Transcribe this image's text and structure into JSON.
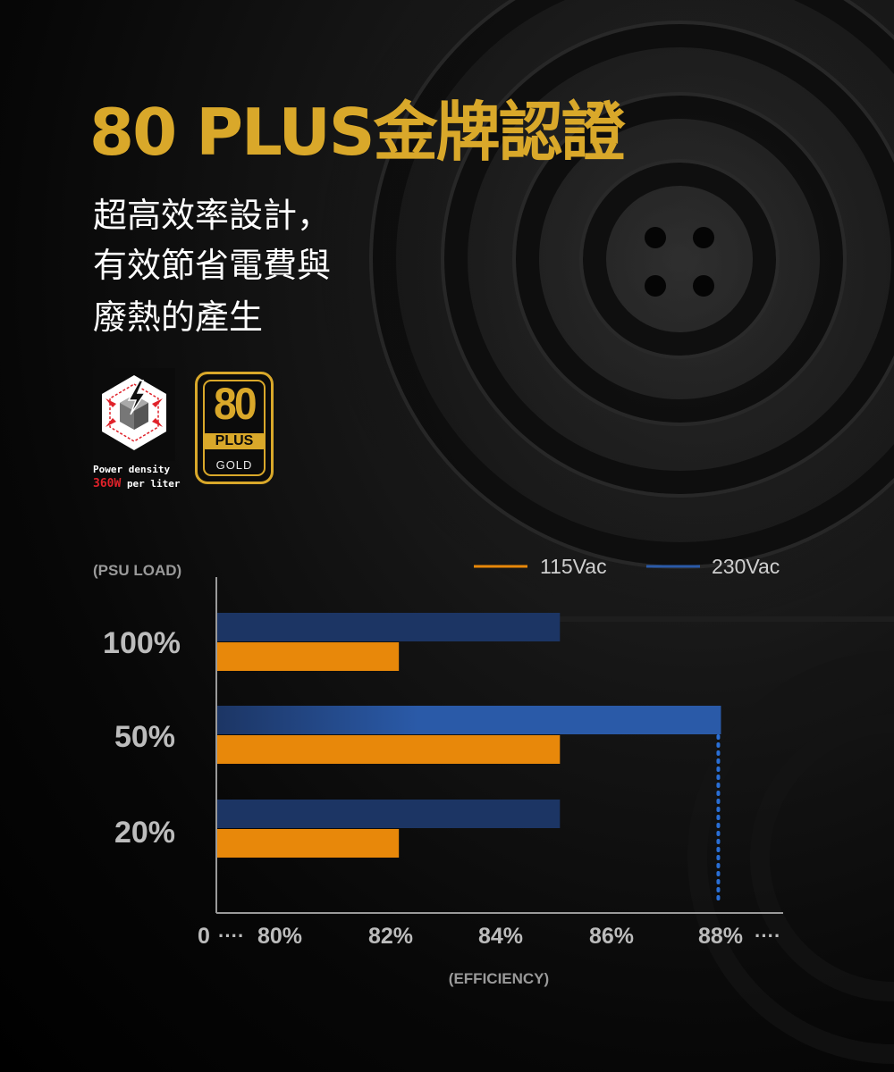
{
  "headline": {
    "title": "80 PLUS金牌認證",
    "lines": [
      "超高效率設計，",
      "有效節省電費與",
      "廢熱的產生"
    ]
  },
  "badges": {
    "power_density": {
      "line1": "Power density",
      "value": "360W",
      "unit": "per liter"
    },
    "eighty_plus": {
      "number": "80",
      "plus": "PLUS",
      "tier": "GOLD"
    }
  },
  "colors": {
    "accent_gold": "#d9a82a",
    "series_115": "#e8880a",
    "series_230": "#1c3564",
    "highlight_230": "#2a5aa8"
  },
  "chart_data": {
    "type": "bar",
    "orientation": "horizontal",
    "ylabel": "(PSU LOAD)",
    "xlabel": "(EFFICIENCY)",
    "categories": [
      "100%",
      "50%",
      "20%"
    ],
    "x_ticks": [
      "0",
      "80%",
      "82%",
      "84%",
      "86%",
      "88%"
    ],
    "xlim": [
      78.6,
      89
    ],
    "series": [
      {
        "name": "230Vac",
        "values": [
          85,
          88,
          85
        ]
      },
      {
        "name": "115Vac",
        "values": [
          82,
          85,
          82
        ]
      }
    ],
    "reference_line": {
      "x": 88
    },
    "legend": "top"
  }
}
